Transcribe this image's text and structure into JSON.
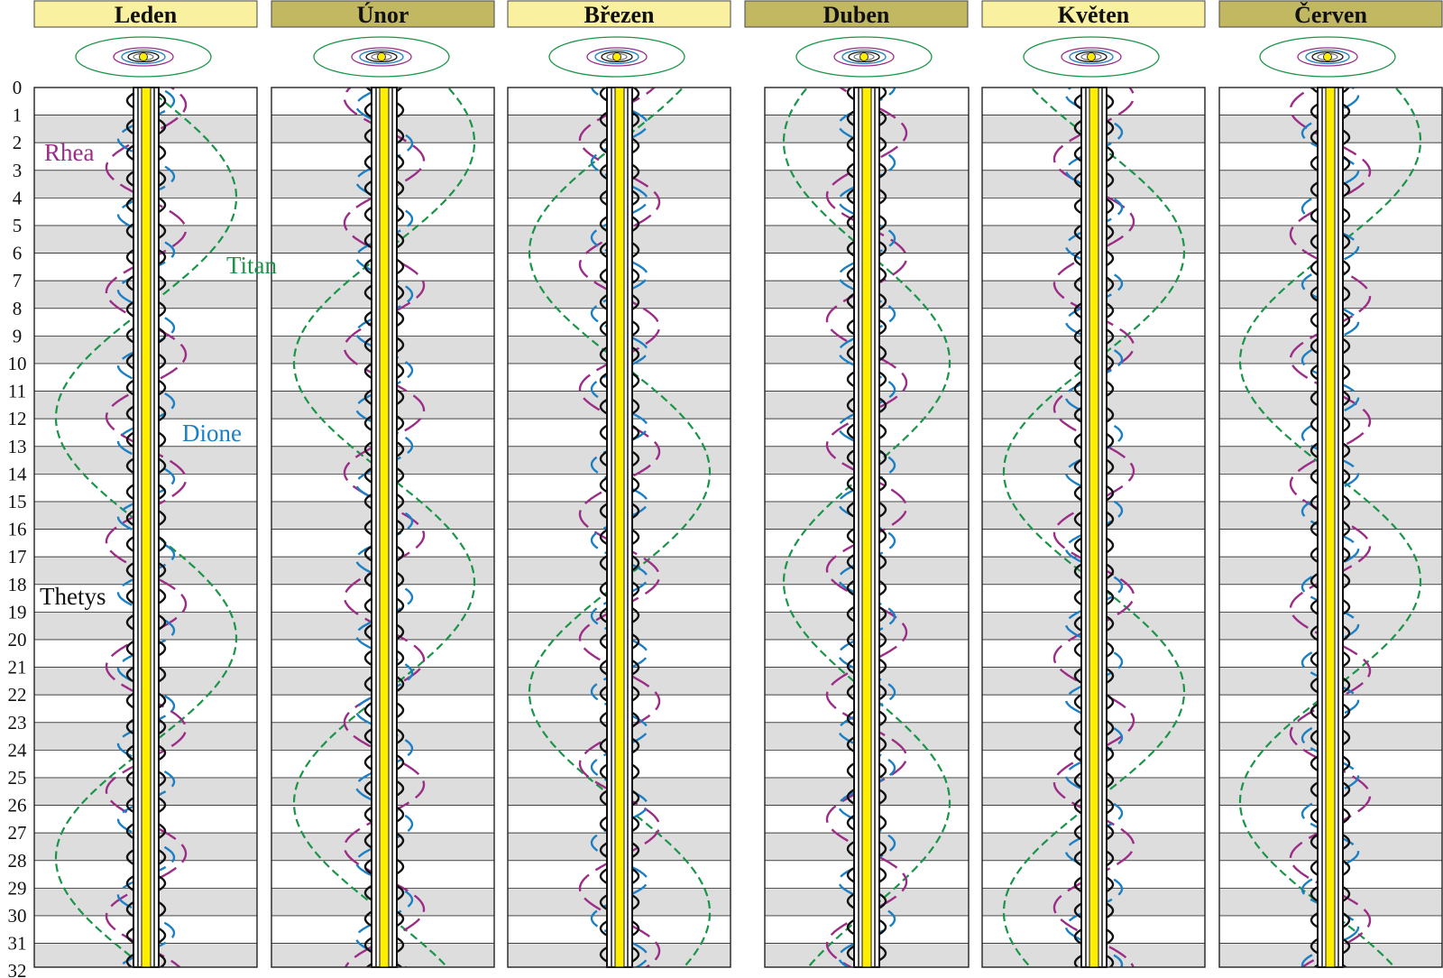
{
  "diagram": {
    "months": [
      "Leden",
      "Únor",
      "Březen",
      "Duben",
      "Květen",
      "Červen"
    ],
    "days": [
      "0",
      "1",
      "2",
      "3",
      "4",
      "5",
      "6",
      "7",
      "8",
      "9",
      "10",
      "11",
      "12",
      "13",
      "14",
      "15",
      "16",
      "17",
      "18",
      "19",
      "20",
      "21",
      "22",
      "23",
      "24",
      "25",
      "26",
      "27",
      "28",
      "29",
      "30",
      "31",
      "32"
    ],
    "moons": [
      {
        "label": "Rhea",
        "color": "#9b2d86"
      },
      {
        "label": "Titan",
        "color": "#1a9448"
      },
      {
        "label": "Dione",
        "color": "#1b7fc4"
      },
      {
        "label": "Thetys",
        "color": "#111111"
      }
    ],
    "colors": {
      "header_bg": "#f9f0a0",
      "header_bg_alt": "#c2b862",
      "planet": "#ffee00",
      "stripe": "#dddddd",
      "rhea": "#9b2d86",
      "titan": "#1a9448",
      "dione": "#1b7fc4",
      "thetys": "#111111"
    }
  }
}
